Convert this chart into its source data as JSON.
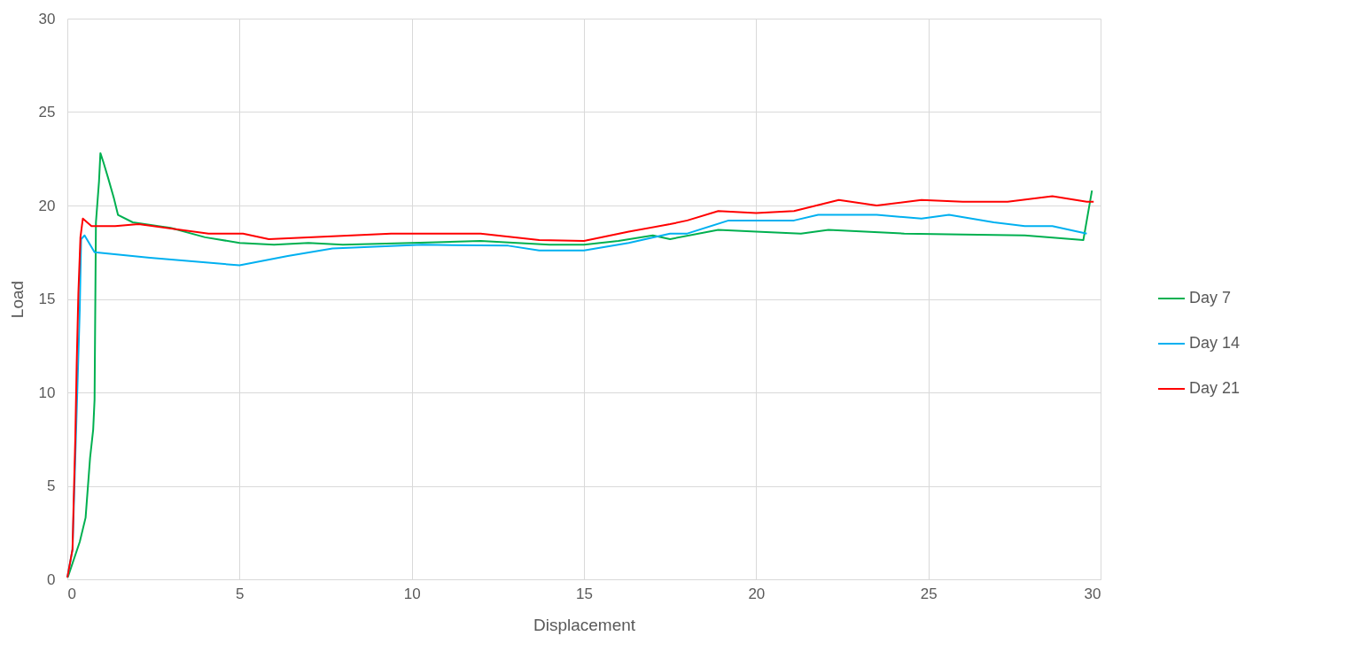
{
  "chart_data": {
    "type": "line",
    "xlabel": "Displacement",
    "ylabel": "Load",
    "xlim": [
      0,
      30
    ],
    "ylim": [
      0,
      30
    ],
    "xticks": [
      0,
      5,
      10,
      15,
      20,
      25,
      30
    ],
    "yticks": [
      0,
      5,
      10,
      15,
      20,
      25,
      30
    ],
    "grid": true,
    "legend": "right",
    "line_style": "solid",
    "series": [
      {
        "name": "Day 7",
        "color": "#00b050",
        "x": [
          0,
          0.02,
          0.36,
          0.53,
          0.66,
          0.75,
          0.79,
          0.83,
          0.92,
          0.96,
          1.05,
          1.18,
          1.35,
          1.47,
          1.9,
          3,
          4,
          5,
          6,
          7,
          8,
          10,
          12,
          14,
          15,
          16,
          17,
          17.5,
          18.9,
          20,
          21.3,
          22.1,
          24.3,
          26,
          27.8,
          29.5,
          29.75
        ],
        "values": [
          0.1,
          0.15,
          2,
          3.3,
          6.5,
          8,
          9.6,
          19.1,
          21.3,
          22.8,
          22.3,
          21.5,
          20.4,
          19.5,
          19.1,
          18.8,
          18.3,
          18,
          17.9,
          18,
          17.9,
          18,
          18.1,
          17.9,
          17.9,
          18.1,
          18.4,
          18.2,
          18.7,
          18.6,
          18.5,
          18.7,
          18.5,
          18.45,
          18.4,
          18.15,
          20.8
        ]
      },
      {
        "name": "Day 14",
        "color": "#00b0f0",
        "x": [
          0,
          0.15,
          0.36,
          0.4,
          0.5,
          0.79,
          2.4,
          5,
          6.4,
          7.7,
          10.3,
          12.8,
          13.7,
          15,
          16.3,
          17.5,
          18,
          19.2,
          20,
          21.1,
          21.8,
          23.5,
          24.8,
          25.6,
          26.9,
          27.8,
          28.6,
          29.6
        ],
        "values": [
          0.1,
          1.6,
          14.4,
          18.2,
          18.4,
          17.5,
          17.2,
          16.8,
          17.3,
          17.7,
          17.9,
          17.85,
          17.6,
          17.6,
          18,
          18.5,
          18.5,
          19.2,
          19.2,
          19.2,
          19.5,
          19.5,
          19.3,
          19.5,
          19.1,
          18.9,
          18.9,
          18.5
        ]
      },
      {
        "name": "Day 21",
        "color": "#ff0000",
        "x": [
          0,
          0.15,
          0.18,
          0.23,
          0.27,
          0.32,
          0.38,
          0.45,
          0.7,
          1.39,
          2.07,
          4.1,
          5.1,
          5.85,
          9.4,
          12,
          13.7,
          15,
          16.3,
          17.5,
          18,
          18.9,
          20,
          21.1,
          22.4,
          23.5,
          24.8,
          26,
          27.3,
          28.6,
          29.6,
          29.8
        ],
        "values": [
          0.1,
          1.6,
          3.9,
          7.5,
          11.4,
          15.3,
          18.3,
          19.3,
          18.9,
          18.9,
          19,
          18.5,
          18.5,
          18.2,
          18.5,
          18.5,
          18.15,
          18.1,
          18.6,
          19,
          19.2,
          19.7,
          19.6,
          19.7,
          20.3,
          20,
          20.3,
          20.2,
          20.2,
          20.5,
          20.2,
          20.2
        ]
      }
    ]
  }
}
